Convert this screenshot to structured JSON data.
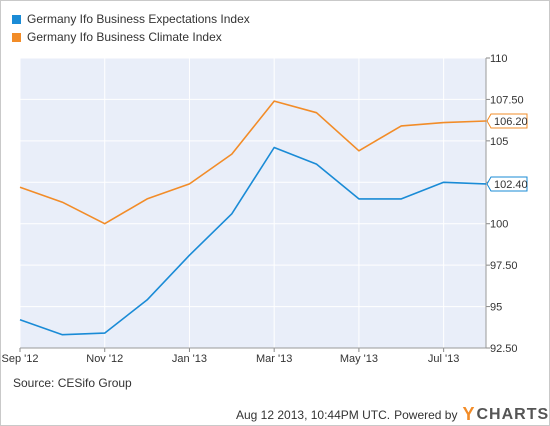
{
  "legend": [
    {
      "label": "Germany Ifo Business Expectations Index",
      "color": "#1a8bd6"
    },
    {
      "label": "Germany Ifo Business Climate Index",
      "color": "#f28c28"
    }
  ],
  "source": "Source: CESifo Group",
  "footer": {
    "timestamp": "Aug 12 2013, 10:44PM UTC.",
    "powered_by": "Powered by",
    "brand_y": "Y",
    "brand_rest": "CHARTS"
  },
  "chart_data": {
    "type": "line",
    "x": [
      "Sep '12",
      "Oct '12",
      "Nov '12",
      "Dec '12",
      "Jan '13",
      "Feb '13",
      "Mar '13",
      "Apr '13",
      "May '13",
      "Jun '13",
      "Jul '13",
      "Aug '13"
    ],
    "x_tick_labels": [
      "Sep '12",
      "Nov '12",
      "Jan '13",
      "Mar '13",
      "May '13",
      "Jul '13"
    ],
    "y_ticks": [
      92.5,
      95,
      97.5,
      100,
      102.5,
      105,
      107.5,
      110
    ],
    "y_tick_labels": [
      "92.50",
      "95",
      "97.50",
      "100",
      "102.50",
      "105",
      "107.50",
      "110"
    ],
    "ylim": [
      92.5,
      110
    ],
    "grid": true,
    "series": [
      {
        "name": "Germany Ifo Business Expectations Index",
        "color": "#1a8bd6",
        "values": [
          94.2,
          93.3,
          93.4,
          95.4,
          98.1,
          100.6,
          104.6,
          103.6,
          101.5,
          101.5,
          102.5,
          102.4
        ],
        "last_label": "102.40"
      },
      {
        "name": "Germany Ifo Business Climate Index",
        "color": "#f28c28",
        "values": [
          102.2,
          101.3,
          100.0,
          101.5,
          102.4,
          104.2,
          107.4,
          106.7,
          104.4,
          105.9,
          106.1,
          106.2
        ],
        "last_label": "106.20"
      }
    ]
  }
}
